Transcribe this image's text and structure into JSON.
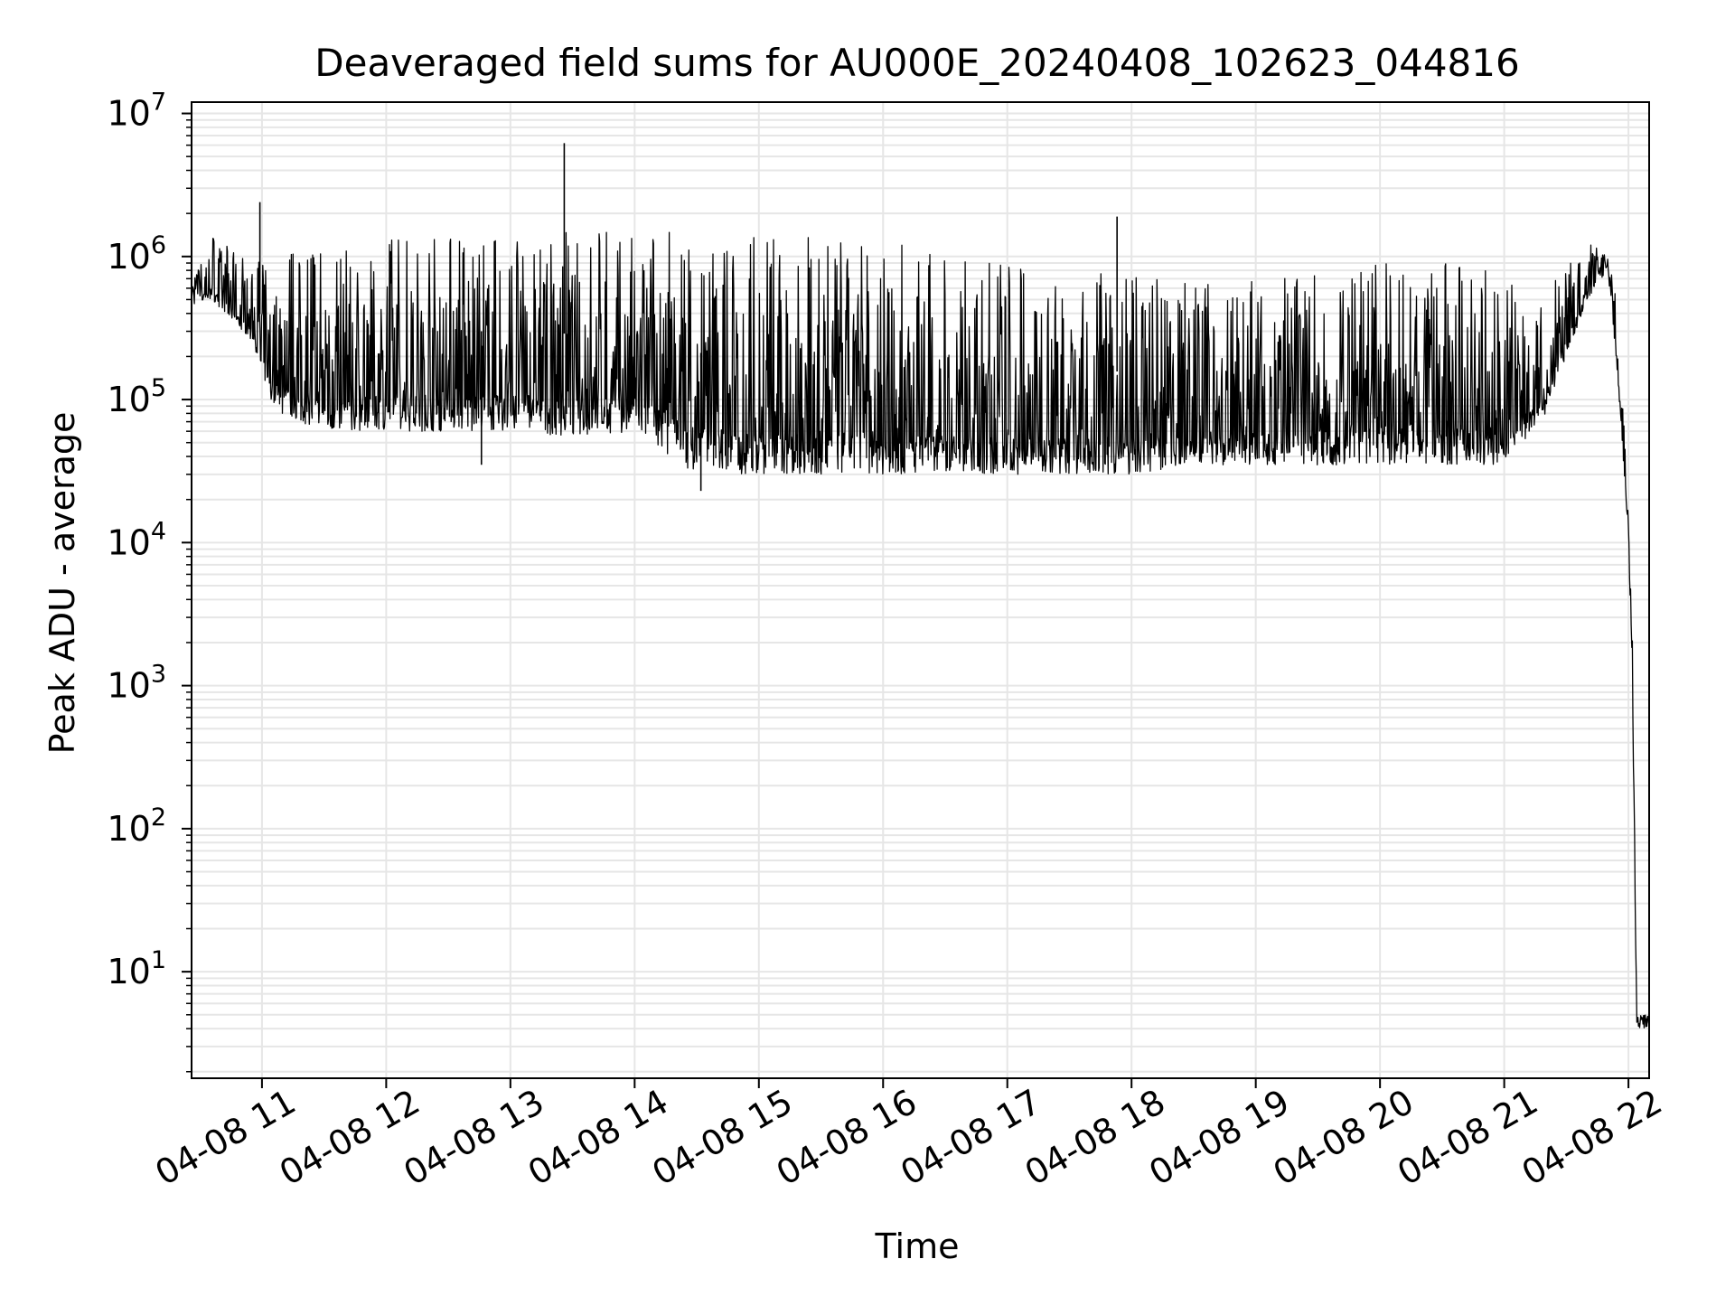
{
  "chart_data": {
    "type": "line",
    "title": "Deaveraged field sums for AU000E_20240408_102623_044816",
    "xlabel": "Time",
    "ylabel": "Peak ADU - average",
    "y_scale": "log",
    "ylim": [
      1.8,
      12000000
    ],
    "xlim": [
      "2024-04-08 10:26",
      "2024-04-08 22:10"
    ],
    "grid": true,
    "grid_minor": true,
    "line_color": "#000000",
    "grid_color": "#e6e6e6",
    "x_ticks": [
      {
        "t": "2024-04-08 11:00",
        "label": "04-08 11"
      },
      {
        "t": "2024-04-08 12:00",
        "label": "04-08 12"
      },
      {
        "t": "2024-04-08 13:00",
        "label": "04-08 13"
      },
      {
        "t": "2024-04-08 14:00",
        "label": "04-08 14"
      },
      {
        "t": "2024-04-08 15:00",
        "label": "04-08 15"
      },
      {
        "t": "2024-04-08 16:00",
        "label": "04-08 16"
      },
      {
        "t": "2024-04-08 17:00",
        "label": "04-08 17"
      },
      {
        "t": "2024-04-08 18:00",
        "label": "04-08 18"
      },
      {
        "t": "2024-04-08 19:00",
        "label": "04-08 19"
      },
      {
        "t": "2024-04-08 20:00",
        "label": "04-08 20"
      },
      {
        "t": "2024-04-08 21:00",
        "label": "04-08 21"
      },
      {
        "t": "2024-04-08 22:00",
        "label": "04-08 22"
      }
    ],
    "y_ticks": [
      {
        "value": 10,
        "base": "10",
        "exp": "1"
      },
      {
        "value": 100,
        "base": "10",
        "exp": "2"
      },
      {
        "value": 1000,
        "base": "10",
        "exp": "3"
      },
      {
        "value": 10000,
        "base": "10",
        "exp": "4"
      },
      {
        "value": 100000,
        "base": "10",
        "exp": "5"
      },
      {
        "value": 1000000,
        "base": "10",
        "exp": "6"
      },
      {
        "value": 10000000,
        "base": "10",
        "exp": "7"
      }
    ],
    "series": [
      {
        "envelope": [
          {
            "t": "2024-04-08 10:26",
            "low": 450000,
            "high": 650000
          },
          {
            "t": "2024-04-08 10:36",
            "low": 500000,
            "high": 1400000
          },
          {
            "t": "2024-04-08 10:46",
            "low": 350000,
            "high": 1100000
          },
          {
            "t": "2024-04-08 10:56",
            "low": 250000,
            "high": 900000
          },
          {
            "t": "2024-04-08 11:04",
            "low": 85000,
            "high": 1000000
          },
          {
            "t": "2024-04-08 11:30",
            "low": 60000,
            "high": 1200000
          },
          {
            "t": "2024-04-08 12:00",
            "low": 60000,
            "high": 1400000
          },
          {
            "t": "2024-04-08 12:30",
            "low": 60000,
            "high": 1500000
          },
          {
            "t": "2024-04-08 13:00",
            "low": 60000,
            "high": 1500000
          },
          {
            "t": "2024-04-08 13:30",
            "low": 55000,
            "high": 1500000
          },
          {
            "t": "2024-04-08 14:00",
            "low": 60000,
            "high": 1500000
          },
          {
            "t": "2024-04-08 14:30",
            "low": 30000,
            "high": 1500000
          },
          {
            "t": "2024-04-08 15:00",
            "low": 30000,
            "high": 1400000
          },
          {
            "t": "2024-04-08 15:30",
            "low": 30000,
            "high": 1400000
          },
          {
            "t": "2024-04-08 16:00",
            "low": 30000,
            "high": 1300000
          },
          {
            "t": "2024-04-08 16:30",
            "low": 30000,
            "high": 1000000
          },
          {
            "t": "2024-04-08 17:00",
            "low": 30000,
            "high": 900000
          },
          {
            "t": "2024-04-08 17:30",
            "low": 30000,
            "high": 900000
          },
          {
            "t": "2024-04-08 18:00",
            "low": 30000,
            "high": 800000
          },
          {
            "t": "2024-04-08 18:30",
            "low": 35000,
            "high": 700000
          },
          {
            "t": "2024-04-08 19:00",
            "low": 35000,
            "high": 700000
          },
          {
            "t": "2024-04-08 19:30",
            "low": 35000,
            "high": 800000
          },
          {
            "t": "2024-04-08 20:00",
            "low": 35000,
            "high": 900000
          },
          {
            "t": "2024-04-08 20:30",
            "low": 35000,
            "high": 900000
          },
          {
            "t": "2024-04-08 21:00",
            "low": 35000,
            "high": 800000
          },
          {
            "t": "2024-04-08 21:20",
            "low": 80000,
            "high": 600000
          },
          {
            "t": "2024-04-08 21:40",
            "low": 500000,
            "high": 1300000
          },
          {
            "t": "2024-04-08 21:50",
            "low": 800000,
            "high": 1000000
          },
          {
            "t": "2024-04-08 21:54",
            "low": 200000,
            "high": 600000
          },
          {
            "t": "2024-04-08 21:58",
            "low": 30000,
            "high": 60000
          },
          {
            "t": "2024-04-08 22:00",
            "low": 10000,
            "high": 15000
          },
          {
            "t": "2024-04-08 22:02",
            "low": 800,
            "high": 2000
          },
          {
            "t": "2024-04-08 22:04",
            "low": 4,
            "high": 5
          },
          {
            "t": "2024-04-08 22:10",
            "low": 4,
            "high": 5
          }
        ],
        "spikes": [
          {
            "t": "2024-04-08 10:59",
            "value": 2400000
          },
          {
            "t": "2024-04-08 13:26",
            "value": 6200000
          },
          {
            "t": "2024-04-08 17:53",
            "value": 1900000
          },
          {
            "t": "2024-04-08 14:32",
            "value": 23000
          },
          {
            "t": "2024-04-08 12:46",
            "value": 35000
          }
        ]
      }
    ]
  }
}
